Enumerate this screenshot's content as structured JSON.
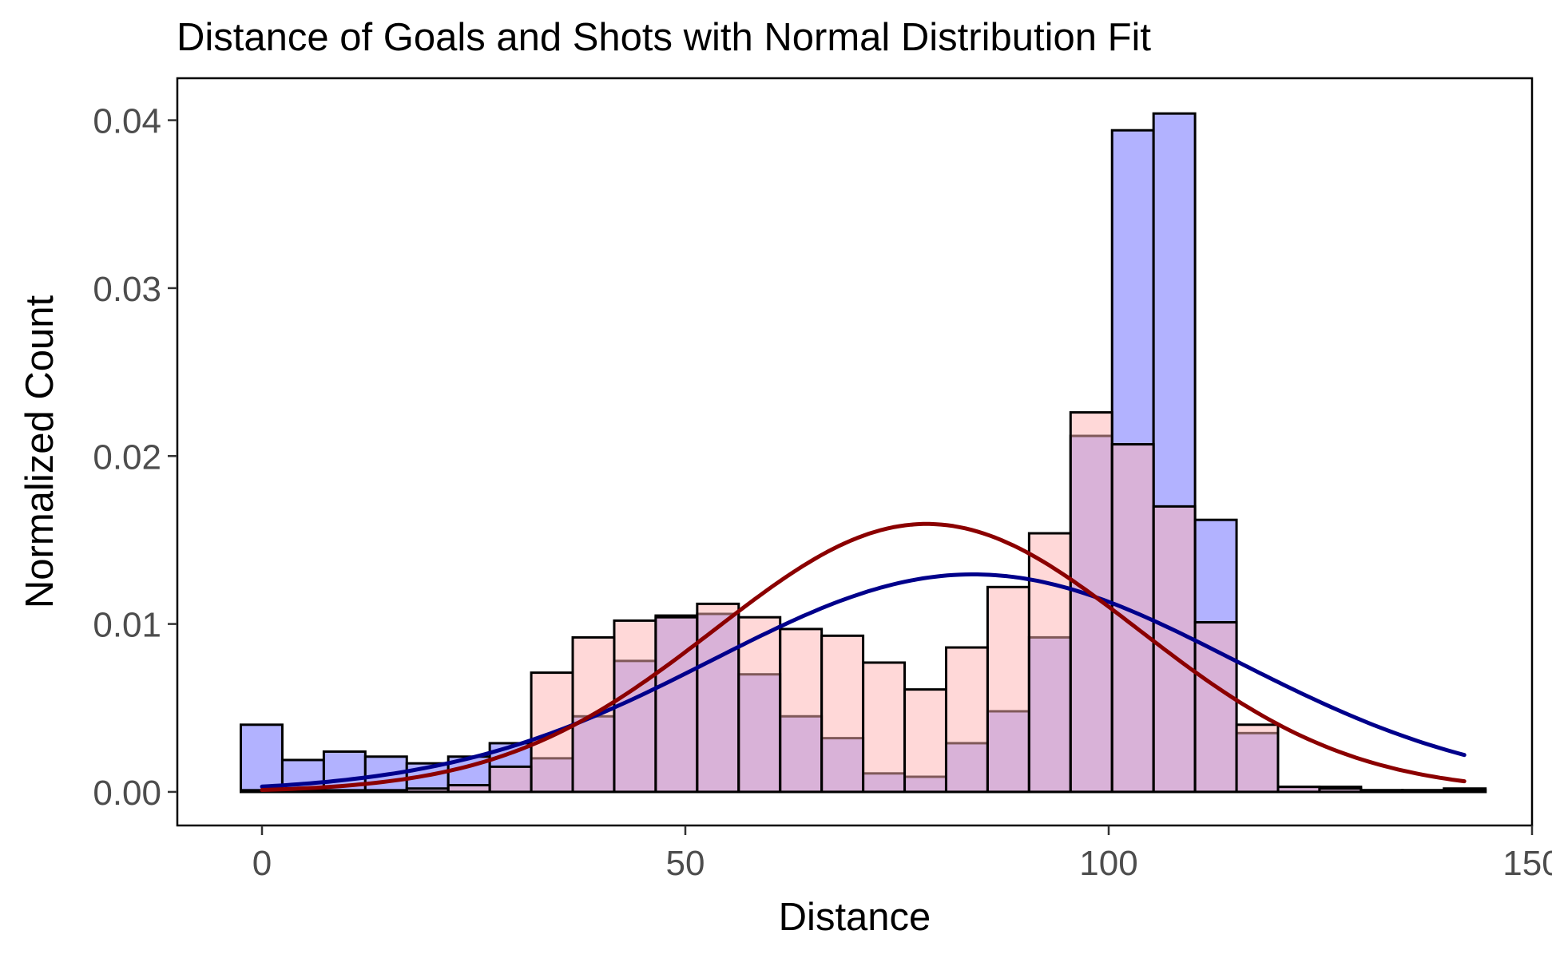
{
  "chart_data": {
    "type": "bar",
    "title": "Distance of Goals and Shots with Normal Distribution Fit",
    "xlabel": "Distance",
    "ylabel": "Normalized Count",
    "xlim": [
      -10,
      150
    ],
    "ylim": [
      -0.002,
      0.0425
    ],
    "x_ticks": [
      0,
      50,
      100,
      150
    ],
    "x_tick_labels": [
      "0",
      "50",
      "100",
      "150"
    ],
    "y_ticks": [
      0,
      0.01,
      0.02,
      0.03,
      0.04
    ],
    "y_tick_labels": [
      "0.00",
      "0.01",
      "0.02",
      "0.03",
      "0.04"
    ],
    "grid": false,
    "legend": "none",
    "bin_width": 4.9,
    "bin_start": -2.5,
    "series": [
      {
        "color": "#b2b2ff",
        "values": [
          0.004,
          0.0019,
          0.0024,
          0.0021,
          0.0017,
          0.0021,
          0.0029,
          0.002,
          0.0045,
          0.0078,
          0.0105,
          0.0106,
          0.007,
          0.0045,
          0.0032,
          0.0011,
          0.0009,
          0.0029,
          0.0048,
          0.0092,
          0.0212,
          0.0394,
          0.0404,
          0.0162,
          0.0035,
          0.0003,
          0.0003,
          0.0001,
          0.0001,
          0.0002
        ]
      },
      {
        "color": "#ffb2b2",
        "values": [
          0.0001,
          0.0001,
          0.0001,
          0.0001,
          0.0002,
          0.0004,
          0.0015,
          0.0071,
          0.0092,
          0.0102,
          0.0104,
          0.0112,
          0.0104,
          0.0097,
          0.0093,
          0.0077,
          0.0061,
          0.0086,
          0.0122,
          0.0154,
          0.0226,
          0.0207,
          0.017,
          0.0101,
          0.004,
          0.0003,
          0.0002,
          0.0001,
          0.0001,
          0.0001
        ]
      },
      {
        "name": "",
        "type": "line",
        "color": "#00008b",
        "mean": 84,
        "sd": 30.8,
        "x_range": [
          0,
          142
        ]
      },
      {
        "name": "",
        "type": "line",
        "color": "#8b0000",
        "mean": 78.5,
        "sd": 25,
        "x_range": [
          0,
          142
        ]
      }
    ]
  }
}
